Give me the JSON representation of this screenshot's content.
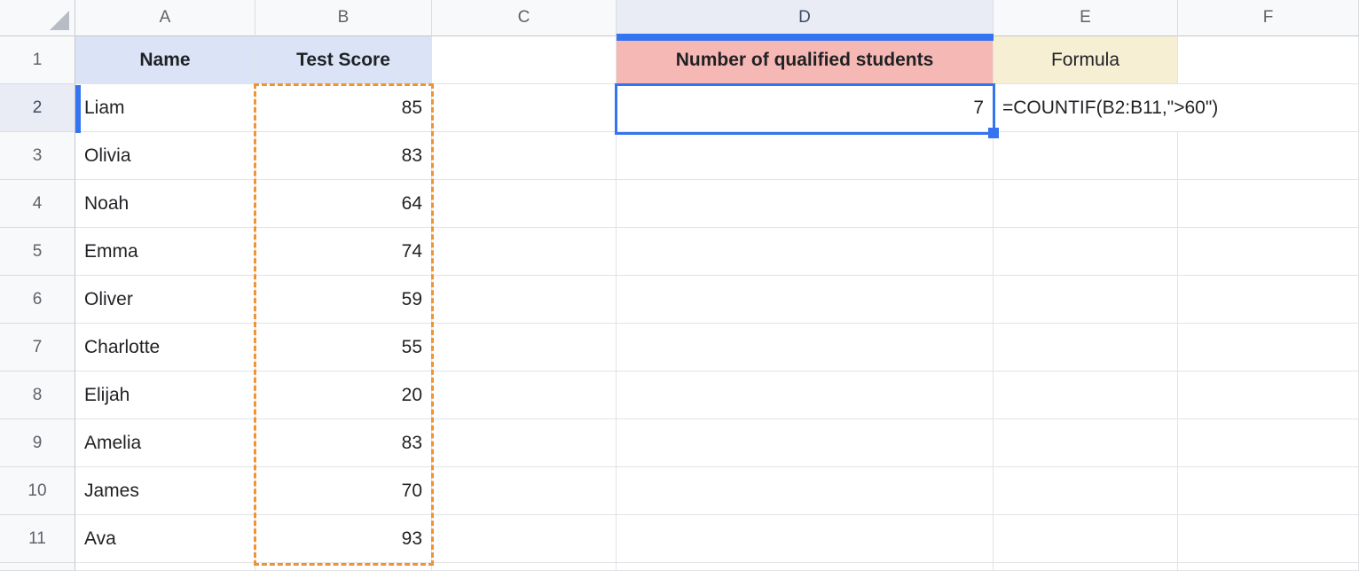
{
  "sheet": {
    "columns": [
      "A",
      "B",
      "C",
      "D",
      "E",
      "F"
    ],
    "header_row": {
      "num": "1",
      "name_header": "Name",
      "score_header": "Test Score",
      "qualified_header": "Number of qualified students",
      "formula_header": "Formula"
    },
    "rows": [
      {
        "num": "2",
        "name": "Liam",
        "score": "85"
      },
      {
        "num": "3",
        "name": "Olivia",
        "score": "83"
      },
      {
        "num": "4",
        "name": "Noah",
        "score": "64"
      },
      {
        "num": "5",
        "name": "Emma",
        "score": "74"
      },
      {
        "num": "6",
        "name": "Oliver",
        "score": "59"
      },
      {
        "num": "7",
        "name": "Charlotte",
        "score": "55"
      },
      {
        "num": "8",
        "name": "Elijah",
        "score": "20"
      },
      {
        "num": "9",
        "name": "Amelia",
        "score": "83"
      },
      {
        "num": "10",
        "name": "James",
        "score": "70"
      },
      {
        "num": "11",
        "name": "Ava",
        "score": "93"
      }
    ],
    "result_value": "7",
    "formula_text": "=COUNTIF(B2:B11,\">60\")",
    "colors": {
      "selection_blue": "#3574f1",
      "range_highlight_orange": "#f09433",
      "header_fill_blue": "#dbe4f6",
      "qualified_fill_pink": "#f5b8b4",
      "formula_fill_cream": "#f6efd4"
    }
  }
}
